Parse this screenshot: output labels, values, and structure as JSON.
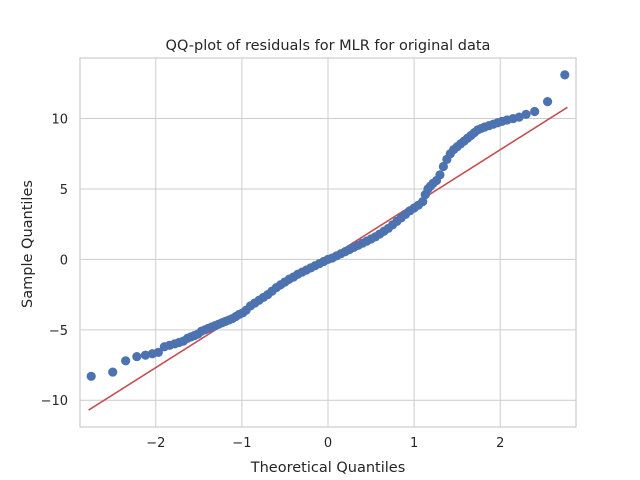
{
  "chart_data": {
    "type": "scatter",
    "title": "QQ-plot of residuals for MLR for original data",
    "xlabel": "Theoretical Quantiles",
    "ylabel": "Sample Quantiles",
    "xlim": [
      -2.88,
      2.88
    ],
    "ylim": [
      -11.9,
      14.3
    ],
    "xticks": [
      -2,
      -1,
      0,
      1,
      2
    ],
    "yticks": [
      -10,
      -5,
      0,
      5,
      10
    ],
    "xtick_labels": [
      "−2",
      "−1",
      "0",
      "1",
      "2"
    ],
    "ytick_labels": [
      "−10",
      "−5",
      "0",
      "5",
      "10"
    ],
    "grid": true,
    "colors": {
      "points": "#4c72b0",
      "reference_line": "#c44e52",
      "grid": "#cccccc",
      "background": "#ffffff",
      "frame": "#cccccc"
    },
    "reference_line": {
      "x": [
        -2.78,
        2.78
      ],
      "y": [
        -10.7,
        10.8
      ]
    },
    "series": [
      {
        "x": [
          -2.75,
          -2.5,
          -2.35,
          -2.22,
          -2.12,
          -2.04,
          -1.97,
          -1.9,
          -1.84,
          -1.78,
          -1.73,
          -1.68,
          -1.63,
          -1.59,
          -1.55,
          -1.51,
          -1.47,
          -1.43,
          -1.39,
          -1.35,
          -1.31,
          -1.27,
          -1.23,
          -1.19,
          -1.15,
          -1.11,
          -1.07,
          -1.03,
          -0.99,
          -0.95,
          -0.9,
          -0.85,
          -0.8,
          -0.75,
          -0.7,
          -0.65,
          -0.6,
          -0.55,
          -0.5,
          -0.45,
          -0.4,
          -0.35,
          -0.3,
          -0.25,
          -0.2,
          -0.15,
          -0.1,
          -0.05,
          0,
          0.05,
          0.1,
          0.15,
          0.2,
          0.25,
          0.3,
          0.35,
          0.4,
          0.45,
          0.5,
          0.55,
          0.6,
          0.65,
          0.7,
          0.75,
          0.8,
          0.85,
          0.9,
          0.95,
          1.0,
          1.05,
          1.1,
          1.13,
          1.16,
          1.19,
          1.22,
          1.26,
          1.3,
          1.34,
          1.38,
          1.42,
          1.46,
          1.5,
          1.54,
          1.58,
          1.62,
          1.66,
          1.7,
          1.74,
          1.78,
          1.82,
          1.87,
          1.92,
          1.97,
          2.02,
          2.08,
          2.15,
          2.22,
          2.3,
          2.4,
          2.55,
          2.75
        ],
        "y": [
          -8.3,
          -8.0,
          -7.2,
          -6.9,
          -6.8,
          -6.7,
          -6.6,
          -6.2,
          -6.1,
          -6.0,
          -5.9,
          -5.8,
          -5.6,
          -5.5,
          -5.4,
          -5.3,
          -5.1,
          -5.0,
          -4.9,
          -4.8,
          -4.7,
          -4.6,
          -4.5,
          -4.4,
          -4.3,
          -4.2,
          -4.05,
          -3.9,
          -3.8,
          -3.6,
          -3.3,
          -3.1,
          -2.9,
          -2.7,
          -2.5,
          -2.25,
          -2.0,
          -1.8,
          -1.6,
          -1.4,
          -1.25,
          -1.05,
          -0.9,
          -0.75,
          -0.6,
          -0.45,
          -0.3,
          -0.15,
          0.0,
          0.1,
          0.25,
          0.4,
          0.55,
          0.7,
          0.85,
          1.0,
          1.15,
          1.3,
          1.45,
          1.6,
          1.8,
          2.0,
          2.2,
          2.45,
          2.7,
          2.95,
          3.2,
          3.45,
          3.65,
          3.85,
          4.1,
          4.6,
          5.0,
          5.2,
          5.4,
          5.6,
          6.0,
          6.6,
          7.1,
          7.5,
          7.8,
          8.0,
          8.2,
          8.4,
          8.6,
          8.8,
          9.0,
          9.2,
          9.3,
          9.4,
          9.5,
          9.6,
          9.7,
          9.8,
          9.9,
          10.0,
          10.1,
          10.3,
          10.5,
          11.2,
          13.1
        ]
      }
    ]
  }
}
